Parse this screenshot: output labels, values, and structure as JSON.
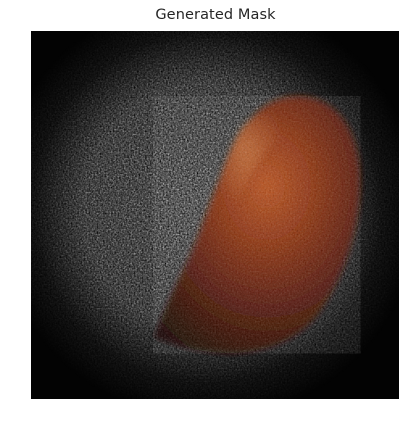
{
  "figure": {
    "title": "Generated Mask"
  },
  "image": {
    "subject": "noisy-gray-mask-with-brown-red-organic-shape",
    "colors": {
      "background": "#030303",
      "noise_gray": "#7b7b7b",
      "blob_dark": "#3b0d04",
      "blob_mid": "#7a260c",
      "blob_light": "#b8521f"
    }
  }
}
